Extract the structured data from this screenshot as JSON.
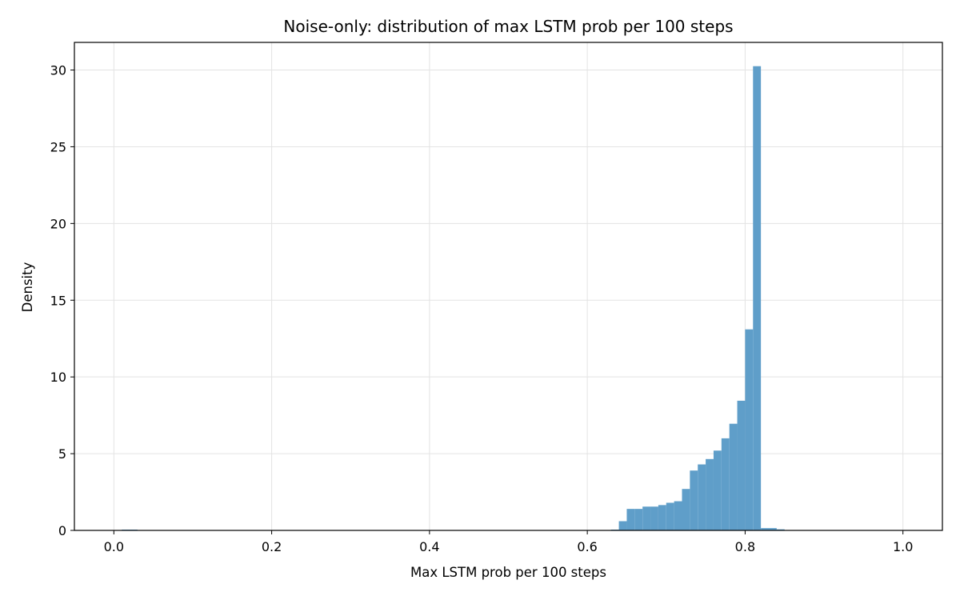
{
  "chart_data": {
    "type": "bar",
    "subtype": "histogram",
    "title": "Noise-only: distribution of max LSTM prob per 100 steps",
    "xlabel": "Max LSTM prob per 100 steps",
    "ylabel": "Density",
    "xlim": [
      -0.05,
      1.05
    ],
    "ylim": [
      0,
      31.8
    ],
    "xticks": [
      0.0,
      0.2,
      0.4,
      0.6,
      0.8,
      1.0
    ],
    "xtick_labels": [
      "0.0",
      "0.2",
      "0.4",
      "0.6",
      "0.8",
      "1.0"
    ],
    "yticks": [
      0,
      5,
      10,
      15,
      20,
      25,
      30
    ],
    "ytick_labels": [
      "0",
      "5",
      "10",
      "15",
      "20",
      "25",
      "30"
    ],
    "grid": true,
    "bin_width": 0.01,
    "bins": [
      {
        "x": 0.01,
        "value": 0.05
      },
      {
        "x": 0.02,
        "value": 0.05
      },
      {
        "x": 0.63,
        "value": 0.05
      },
      {
        "x": 0.64,
        "value": 0.6
      },
      {
        "x": 0.65,
        "value": 1.4
      },
      {
        "x": 0.66,
        "value": 1.4
      },
      {
        "x": 0.67,
        "value": 1.55
      },
      {
        "x": 0.68,
        "value": 1.55
      },
      {
        "x": 0.69,
        "value": 1.65
      },
      {
        "x": 0.7,
        "value": 1.8
      },
      {
        "x": 0.71,
        "value": 1.9
      },
      {
        "x": 0.72,
        "value": 2.7
      },
      {
        "x": 0.73,
        "value": 3.9
      },
      {
        "x": 0.74,
        "value": 4.3
      },
      {
        "x": 0.75,
        "value": 4.65
      },
      {
        "x": 0.76,
        "value": 5.2
      },
      {
        "x": 0.77,
        "value": 6.0
      },
      {
        "x": 0.78,
        "value": 6.95
      },
      {
        "x": 0.79,
        "value": 8.45
      },
      {
        "x": 0.8,
        "value": 13.1
      },
      {
        "x": 0.81,
        "value": 30.25
      },
      {
        "x": 0.82,
        "value": 0.15
      },
      {
        "x": 0.83,
        "value": 0.15
      },
      {
        "x": 0.84,
        "value": 0.07
      }
    ],
    "colors": {
      "bar": "#5f9ec9",
      "grid": "#e3e3e3",
      "axis": "#000000"
    }
  }
}
